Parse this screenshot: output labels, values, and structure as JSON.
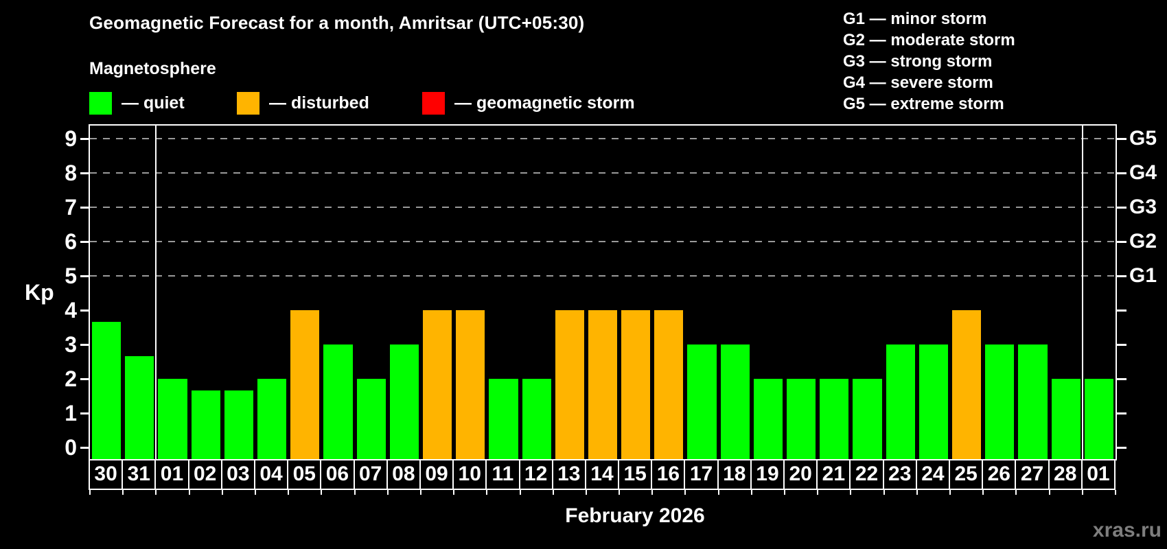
{
  "header": {
    "title": "Geomagnetic Forecast for a month, Amritsar (UTC+05:30)",
    "subtitle": "Magnetosphere"
  },
  "legend": {
    "items": [
      {
        "label": "— quiet",
        "status": "quiet"
      },
      {
        "label": "— disturbed",
        "status": "disturbed"
      },
      {
        "label": "— geomagnetic storm",
        "status": "storm"
      }
    ]
  },
  "g_legend": {
    "lines": [
      "G1 — minor storm",
      "G2 — moderate storm",
      "G3 — strong storm",
      "G4 — severe storm",
      "G5 — extreme storm"
    ]
  },
  "footer": {
    "watermark": "xras.ru"
  },
  "colors": {
    "quiet": "#00ff00",
    "disturbed": "#ffb400",
    "storm": "#ff0000",
    "grid": "#9a9a9a",
    "axis": "#ffffff"
  },
  "chart_data": {
    "type": "bar",
    "title": "Geomagnetic Forecast for a month, Amritsar (UTC+05:30)",
    "ylabel": "Kp",
    "xlabel": "February 2026",
    "ylim": [
      0,
      9
    ],
    "y_ticks": [
      0,
      1,
      2,
      3,
      4,
      5,
      6,
      7,
      8,
      9
    ],
    "gridlines_at": [
      5,
      6,
      7,
      8,
      9
    ],
    "right_axis": [
      {
        "kp": 5,
        "label": "G1"
      },
      {
        "kp": 6,
        "label": "G2"
      },
      {
        "kp": 7,
        "label": "G3"
      },
      {
        "kp": 8,
        "label": "G4"
      },
      {
        "kp": 9,
        "label": "G5"
      }
    ],
    "categories": [
      "30",
      "31",
      "01",
      "02",
      "03",
      "04",
      "05",
      "06",
      "07",
      "08",
      "09",
      "10",
      "11",
      "12",
      "13",
      "14",
      "15",
      "16",
      "17",
      "18",
      "19",
      "20",
      "21",
      "22",
      "23",
      "24",
      "25",
      "26",
      "27",
      "28",
      "01"
    ],
    "values": [
      3.67,
      2.67,
      2,
      1.67,
      1.67,
      2,
      4,
      3,
      2,
      3,
      4,
      4,
      2,
      2,
      4,
      4,
      4,
      4,
      3,
      3,
      2,
      2,
      2,
      2,
      3,
      3,
      4,
      3,
      3,
      2,
      2
    ],
    "statuses": [
      "quiet",
      "quiet",
      "quiet",
      "quiet",
      "quiet",
      "quiet",
      "disturbed",
      "quiet",
      "quiet",
      "quiet",
      "disturbed",
      "disturbed",
      "quiet",
      "quiet",
      "disturbed",
      "disturbed",
      "disturbed",
      "disturbed",
      "quiet",
      "quiet",
      "quiet",
      "quiet",
      "quiet",
      "quiet",
      "quiet",
      "quiet",
      "disturbed",
      "quiet",
      "quiet",
      "quiet",
      "quiet"
    ],
    "month_separator_slots": [
      2,
      30
    ],
    "legend_note": "grid off below Kp 5; dashed gridlines at G-storm levels"
  }
}
